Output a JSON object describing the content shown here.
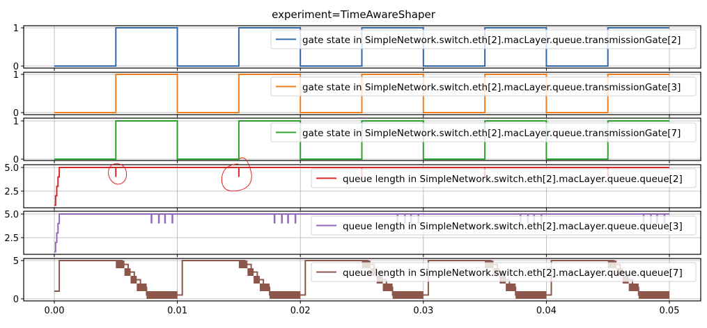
{
  "title": "experiment=TimeAwareShaper",
  "colors": {
    "gate2": "#2f67ad",
    "gate3": "#f27f1e",
    "gate7": "#2ca02c",
    "queue2": "#d62728",
    "queue3": "#9467bd",
    "queue7": "#8c564b",
    "grid": "#b0b0b0",
    "annotation": "#e02020"
  },
  "chart_data": [
    {
      "type": "line",
      "title": "experiment=TimeAwareShaper",
      "legend": "gate state in SimpleNetwork.switch.eth[2].macLayer.queue.transmissionGate[2]",
      "x": [
        0.0,
        0.005,
        0.005,
        0.01,
        0.01,
        0.015,
        0.015,
        0.02,
        0.02,
        0.025,
        0.025,
        0.03,
        0.03,
        0.035,
        0.035,
        0.04,
        0.04,
        0.045,
        0.045,
        0.05
      ],
      "values": [
        0,
        0,
        1,
        1,
        0,
        0,
        1,
        1,
        0,
        0,
        1,
        1,
        0,
        0,
        1,
        1,
        0,
        0,
        1,
        1
      ],
      "yticks": [
        "0",
        "1"
      ],
      "ylim": [
        -0.05,
        1.05
      ],
      "grid": true,
      "legend_position": "upper right"
    },
    {
      "type": "line",
      "legend": "gate state in SimpleNetwork.switch.eth[2].macLayer.queue.transmissionGate[3]",
      "x": [
        0.0,
        0.005,
        0.005,
        0.01,
        0.01,
        0.015,
        0.015,
        0.02,
        0.02,
        0.025,
        0.025,
        0.03,
        0.03,
        0.035,
        0.035,
        0.04,
        0.04,
        0.045,
        0.045,
        0.05
      ],
      "values": [
        0,
        0,
        1,
        1,
        0,
        0,
        1,
        1,
        0,
        0,
        1,
        1,
        0,
        0,
        1,
        1,
        0,
        0,
        1,
        1
      ],
      "yticks": [
        "0",
        "1"
      ],
      "ylim": [
        -0.05,
        1.05
      ],
      "grid": true,
      "legend_position": "upper right"
    },
    {
      "type": "line",
      "legend": "gate state in SimpleNetwork.switch.eth[2].macLayer.queue.transmissionGate[7]",
      "x": [
        0.0,
        0.005,
        0.005,
        0.01,
        0.01,
        0.015,
        0.015,
        0.02,
        0.02,
        0.025,
        0.025,
        0.03,
        0.03,
        0.035,
        0.035,
        0.04,
        0.04,
        0.045,
        0.045,
        0.05
      ],
      "values": [
        0,
        0,
        1,
        1,
        0,
        0,
        1,
        1,
        0,
        0,
        1,
        1,
        0,
        0,
        1,
        1,
        0,
        0,
        1,
        1
      ],
      "yticks": [
        "0",
        "1"
      ],
      "ylim": [
        -0.05,
        1.05
      ],
      "grid": true,
      "legend_position": "upper right"
    },
    {
      "type": "line",
      "legend": "queue length in SimpleNetwork.switch.eth[2].macLayer.queue.queue[2]",
      "x": [
        0.0,
        0.0001,
        0.0001,
        0.0002,
        0.0002,
        0.0003,
        0.0003,
        0.0004,
        0.0004,
        0.005,
        0.005,
        0.005,
        0.015,
        0.015,
        0.015,
        0.025,
        0.025,
        0.025,
        0.035,
        0.035,
        0.035,
        0.045,
        0.045,
        0.045,
        0.05
      ],
      "values": [
        1,
        1,
        2,
        2,
        3,
        3,
        4,
        4,
        5,
        5,
        4,
        5,
        5,
        4,
        5,
        5,
        4,
        5,
        5,
        4,
        5,
        5,
        4,
        5,
        5
      ],
      "yticks": [
        "2.5",
        "5.0"
      ],
      "ylim": [
        0.9,
        5.1
      ],
      "grid": true,
      "legend_position": "center right",
      "annotations": [
        "hand-drawn red circle around dip at x=0.005",
        "hand-drawn red circle around dip at x=0.015"
      ]
    },
    {
      "type": "line",
      "legend": "queue length in SimpleNetwork.switch.eth[2].macLayer.queue.queue[3]",
      "x": [
        0.0,
        0.0001,
        0.0001,
        0.0002,
        0.0002,
        0.0003,
        0.0003,
        0.0004,
        0.0004,
        0.05
      ],
      "values": [
        1,
        1,
        2,
        2,
        3,
        3,
        4,
        4,
        5,
        5
      ],
      "dips_to_4_at_x": [
        0.0079,
        0.0085,
        0.009,
        0.0096,
        0.0179,
        0.0185,
        0.019,
        0.0196,
        0.0279,
        0.0285,
        0.029,
        0.0296,
        0.0379,
        0.0385,
        0.039,
        0.0396,
        0.0479,
        0.0485,
        0.049,
        0.0496
      ],
      "yticks": [
        "2.5",
        "5.0"
      ],
      "ylim": [
        0.9,
        5.1
      ],
      "grid": true,
      "legend_position": "center right"
    },
    {
      "type": "line",
      "legend": "queue length in SimpleNetwork.switch.eth[2].macLayer.queue.queue[7]",
      "x": [
        0.0,
        0.0004,
        0.005,
        0.0055,
        0.006,
        0.0065,
        0.007,
        0.0075,
        0.01,
        0.0104,
        0.015,
        0.0155,
        0.016,
        0.0165,
        0.017,
        0.0175,
        0.02,
        0.0204,
        0.025,
        0.0255,
        0.026,
        0.0265,
        0.027,
        0.0275,
        0.03,
        0.0304,
        0.035,
        0.0355,
        0.036,
        0.0365,
        0.037,
        0.0375,
        0.04,
        0.0404,
        0.045,
        0.0455,
        0.046,
        0.0465,
        0.047,
        0.0475,
        0.05
      ],
      "values": [
        1,
        5,
        5,
        4.5,
        3.5,
        2.5,
        1.5,
        0.5,
        0.5,
        5,
        5,
        4.5,
        3.5,
        2.5,
        1.5,
        0.5,
        0.5,
        5,
        5,
        4.5,
        3.5,
        2.5,
        1.5,
        0.5,
        0.5,
        5,
        5,
        4.5,
        3.5,
        2.5,
        1.5,
        0.5,
        0.5,
        5,
        5,
        4.5,
        3.5,
        2.5,
        1.5,
        0.5,
        0.5
      ],
      "yticks": [
        "0",
        "5"
      ],
      "ylim": [
        -0.25,
        5.25
      ],
      "grid": true,
      "legend_position": "upper right"
    }
  ],
  "xaxis": {
    "ticks": [
      "0.00",
      "0.01",
      "0.02",
      "0.03",
      "0.04",
      "0.05"
    ],
    "xlim": [
      -0.0026,
      0.0525
    ]
  },
  "panels": [
    {
      "legend": "gate state in SimpleNetwork.switch.eth[2].macLayer.queue.transmissionGate[2]",
      "ytick_top": "1",
      "ytick_bottom": "0"
    },
    {
      "legend": "gate state in SimpleNetwork.switch.eth[2].macLayer.queue.transmissionGate[3]",
      "ytick_top": "1",
      "ytick_bottom": "0"
    },
    {
      "legend": "gate state in SimpleNetwork.switch.eth[2].macLayer.queue.transmissionGate[7]",
      "ytick_top": "1",
      "ytick_bottom": "0"
    },
    {
      "legend": "queue length in SimpleNetwork.switch.eth[2].macLayer.queue.queue[2]",
      "ytick_top": "5.0",
      "ytick_bottom": "2.5"
    },
    {
      "legend": "queue length in SimpleNetwork.switch.eth[2].macLayer.queue.queue[3]",
      "ytick_top": "5.0",
      "ytick_bottom": "2.5"
    },
    {
      "legend": "queue length in SimpleNetwork.switch.eth[2].macLayer.queue.queue[7]",
      "ytick_top": "5",
      "ytick_bottom": "0"
    }
  ]
}
